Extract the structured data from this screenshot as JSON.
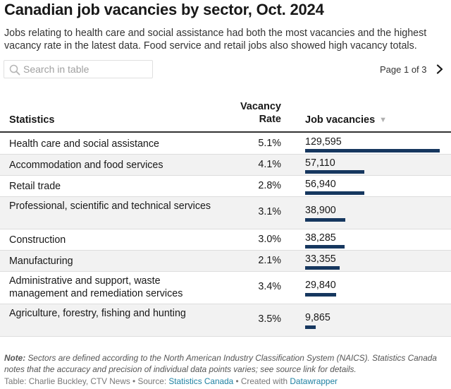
{
  "title": "Canadian job vacancies by sector, Oct. 2024",
  "subtitle": "Jobs relating to health care and social assistance had both the most vacancies and the highest vacancy rate in the latest data. Food service and retail jobs also showed high vacancy totals.",
  "search": {
    "placeholder": "Search in table",
    "icon": "search-icon"
  },
  "pager": {
    "label": "Page 1 of 3",
    "next_icon": "chevron-right-icon"
  },
  "columns": {
    "statistics": "Statistics",
    "rate_line1": "Vacancy",
    "rate_line2": "Rate",
    "vacancies": "Job vacancies",
    "sort_icon": "▼"
  },
  "rows": [
    {
      "name": "Health care and social assistance",
      "rate": "5.1%",
      "vacancies": "129,595"
    },
    {
      "name": "Accommodation and food services",
      "rate": "4.1%",
      "vacancies": "57,110"
    },
    {
      "name": "Retail trade",
      "rate": "2.8%",
      "vacancies": "56,940"
    },
    {
      "name": "Professional, scientific and technical services",
      "rate": "3.1%",
      "vacancies": "38,900"
    },
    {
      "name": "Construction",
      "rate": "3.0%",
      "vacancies": "38,285"
    },
    {
      "name": "Manufacturing",
      "rate": "2.1%",
      "vacancies": "33,355"
    },
    {
      "name": "Administrative and support, waste management and remediation services",
      "rate": "3.4%",
      "vacancies": "29,840"
    },
    {
      "name": "Agriculture, forestry, fishing and hunting",
      "rate": "3.5%",
      "vacancies": "9,865"
    }
  ],
  "note_label": "Note:",
  "note_text": "Sectors are defined according to the North American Industry Classification System (NAICS). Statistics Canada notes that the accuracy and precision of individual data points varies; see source link for details.",
  "footer": {
    "prefix": "Table: Charlie Buckley, CTV News • Source: ",
    "source": "Statistics Canada",
    "middle": " • Created with ",
    "tool": "Datawrapper"
  },
  "colors": {
    "bar": "#16375f",
    "link": "#1d81a2",
    "row_shade": "#f2f2f2"
  },
  "chart_data": {
    "type": "table",
    "columns": [
      "Statistics",
      "Vacancy Rate",
      "Job vacancies"
    ],
    "categories": [
      "Health care and social assistance",
      "Accommodation and food services",
      "Retail trade",
      "Professional, scientific and technical services",
      "Construction",
      "Manufacturing",
      "Administrative and support, waste management and remediation services",
      "Agriculture, forestry, fishing and hunting"
    ],
    "series": [
      {
        "name": "Vacancy Rate",
        "values": [
          5.1,
          4.1,
          2.8,
          3.1,
          3.0,
          2.1,
          3.4,
          3.5
        ]
      },
      {
        "name": "Job vacancies",
        "values": [
          129595,
          57110,
          56940,
          38900,
          38285,
          33355,
          29840,
          9865
        ]
      }
    ],
    "sort": "Job vacancies descending"
  }
}
